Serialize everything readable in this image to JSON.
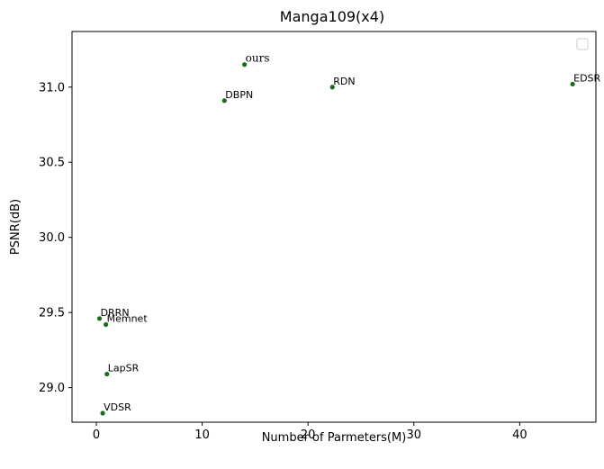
{
  "chart_data": {
    "type": "scatter",
    "title": "Manga109(x4)",
    "xlabel": "Number of Parmeters(M)",
    "ylabel": "PSNR(dB)",
    "xlim": [
      -2.3,
      47.2
    ],
    "ylim": [
      28.77,
      31.37
    ],
    "xticks": [
      0,
      10,
      20,
      30,
      40
    ],
    "yticks": [
      29.0,
      29.5,
      30.0,
      30.5,
      31.0
    ],
    "xtick_labels": [
      "0",
      "10",
      "20",
      "30",
      "40"
    ],
    "ytick_labels": [
      "29.0",
      "29.5",
      "30.0",
      "30.5",
      "31.0"
    ],
    "grid": false,
    "legend": "top-right",
    "marker_color": "#1a6b1a",
    "points": [
      {
        "label": "ours",
        "x": 14.0,
        "y": 31.15
      },
      {
        "label": "RDN",
        "x": 22.3,
        "y": 31.0
      },
      {
        "label": "EDSR",
        "x": 45.0,
        "y": 31.02
      },
      {
        "label": "DBPN",
        "x": 12.1,
        "y": 30.91
      },
      {
        "label": "DRRN",
        "x": 0.3,
        "y": 29.46
      },
      {
        "label": "Memnet",
        "x": 0.9,
        "y": 29.42
      },
      {
        "label": "LapSR",
        "x": 1.0,
        "y": 29.09
      },
      {
        "label": "VDSR",
        "x": 0.6,
        "y": 28.83
      }
    ]
  }
}
